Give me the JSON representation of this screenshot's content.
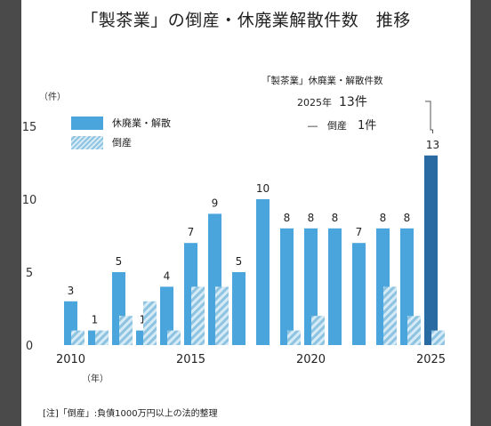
{
  "title": "「製茶業」の倒産・休廃業解散件数　推移",
  "unit_label": "（件）",
  "year_unit": "（年）",
  "legend": {
    "solid": "休廃業・解散",
    "hatch": "倒産"
  },
  "annotation": {
    "title": "「製茶業」休廃業・解散件数",
    "line1_prefix": "2025年",
    "line1_value": "13件",
    "line2_prefix": "―　倒産",
    "line2_value": "1件"
  },
  "note": "[注]「倒産」:負債1000万円以上の法的整理",
  "colors": {
    "solid": "#4aa5dc",
    "highlight": "#2a6aa2",
    "hatch_light": "#d6ebf5",
    "hatch_dark": "#8ec4e2"
  },
  "chart_data": {
    "type": "bar",
    "categories": [
      "2010",
      "2011",
      "2012",
      "2013",
      "2014",
      "2015",
      "2016",
      "2017",
      "2018",
      "2019",
      "2020",
      "2021",
      "2022",
      "2023",
      "2024",
      "2025"
    ],
    "x_tick_labels": [
      "2010",
      "2015",
      "2020",
      "2025"
    ],
    "y_ticks": [
      0,
      5,
      10,
      15
    ],
    "ylim": [
      0,
      16
    ],
    "series": [
      {
        "name": "休廃業・解散",
        "values": [
          3,
          1,
          5,
          1,
          4,
          7,
          9,
          5,
          10,
          8,
          8,
          8,
          7,
          8,
          8,
          13
        ]
      },
      {
        "name": "倒産",
        "values": [
          1,
          1,
          2,
          3,
          1,
          4,
          4,
          0,
          0,
          1,
          2,
          0,
          0,
          4,
          2,
          1
        ]
      }
    ],
    "grid": false,
    "legend_position": "top-left"
  }
}
